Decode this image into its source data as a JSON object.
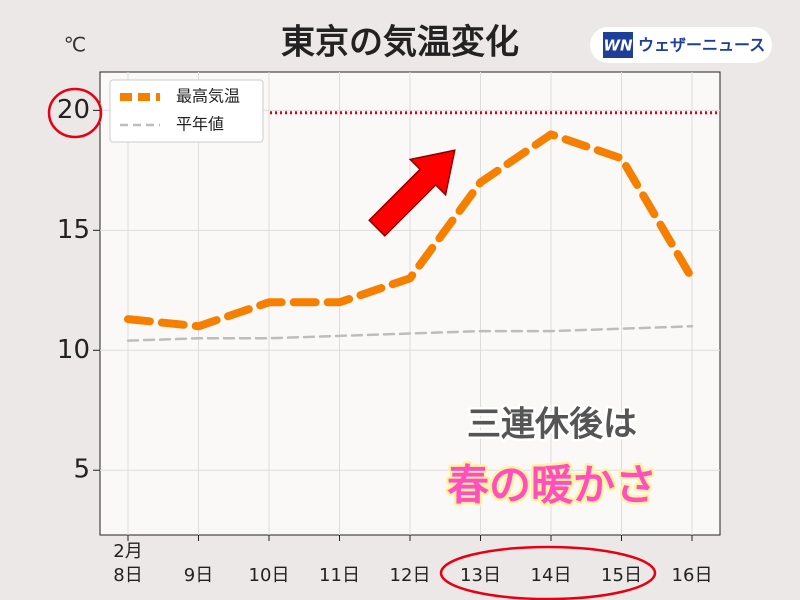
{
  "chart_data": {
    "type": "line",
    "title": "東京の気温変化",
    "y_unit": "℃",
    "month_label": "2月",
    "categories": [
      "8日",
      "9日",
      "10日",
      "11日",
      "12日",
      "13日",
      "14日",
      "15日",
      "16日"
    ],
    "series": [
      {
        "name": "最高気温",
        "color": "#f77f00",
        "style": "dashed-bold",
        "values": [
          11.3,
          11.0,
          12.0,
          12.0,
          13.0,
          17.0,
          19.0,
          18.0,
          13.0
        ]
      },
      {
        "name": "平年値",
        "color": "#bdbdbd",
        "style": "dashed",
        "values": [
          10.4,
          10.5,
          10.5,
          10.6,
          10.7,
          10.8,
          10.8,
          10.9,
          11.0
        ]
      }
    ],
    "reference_line": {
      "value": 19.9,
      "color": "#e0001a"
    },
    "ylim": [
      2.3,
      21.6
    ],
    "yticks": [
      5,
      10,
      15,
      20
    ],
    "grid": true,
    "legend": "upper left",
    "annotations": [
      "三連休後は",
      "春の暖かさ"
    ]
  },
  "brand": {
    "mark": "WN",
    "name": "ウェザーニュース"
  }
}
